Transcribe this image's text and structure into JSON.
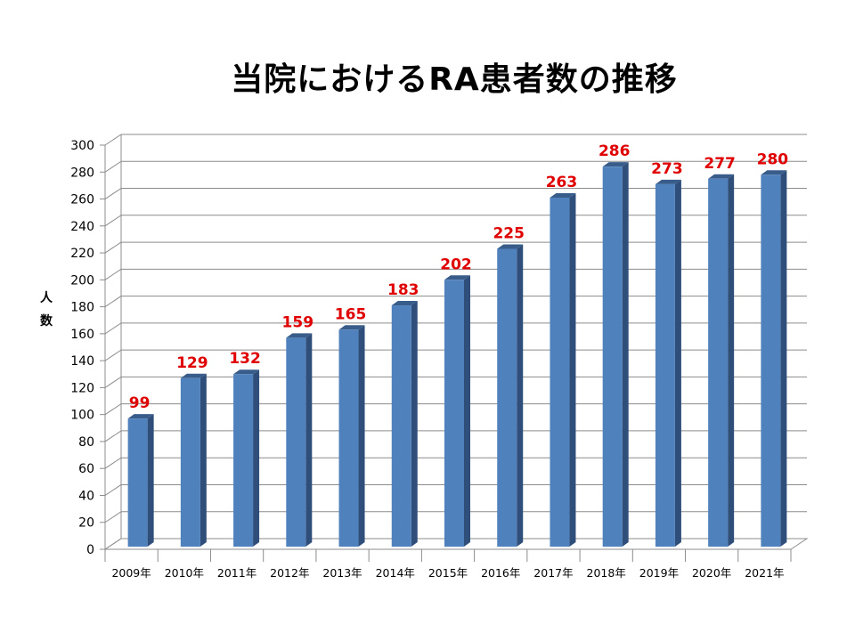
{
  "chart_data": {
    "type": "bar",
    "title": "当院におけるRA患者数の推移",
    "ylabel": "人数",
    "xlabel": "",
    "categories": [
      "2009年",
      "2010年",
      "2011年",
      "2012年",
      "2013年",
      "2014年",
      "2015年",
      "2016年",
      "2017年",
      "2018年",
      "2019年",
      "2020年",
      "2021年"
    ],
    "values": [
      99,
      129,
      132,
      159,
      165,
      183,
      202,
      225,
      263,
      286,
      273,
      277,
      280
    ],
    "ylim": [
      0,
      300
    ],
    "ytick_step": 20,
    "grid": true,
    "legend": "none",
    "bar_color": "#4f81bd",
    "bar_side_color": "#2f4f7a",
    "bar_top_color": "#385d8a",
    "label_color": "#e00000"
  }
}
